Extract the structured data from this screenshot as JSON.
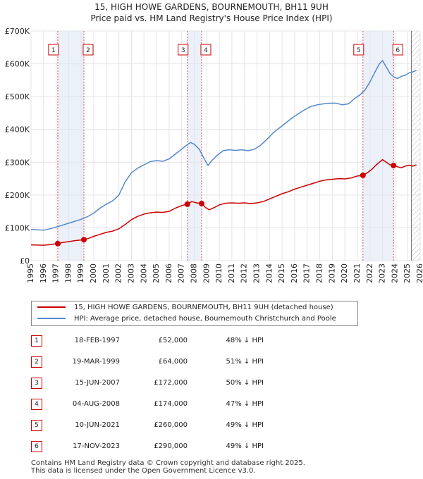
{
  "title_line1": "15, HIGH HOWE GARDENS, BOURNEMOUTH, BH11 9UH",
  "title_line2": "Price paid vs. HM Land Registry's House Price Index (HPI)",
  "chart_data": {
    "type": "line",
    "title": "15, HIGH HOWE GARDENS, BOURNEMOUTH, BH11 9UH — Price paid vs. HM Land Registry's House Price Index (HPI)",
    "xlabel": "",
    "ylabel": "",
    "xlim": [
      1995,
      2026
    ],
    "ylim": [
      0,
      700000
    ],
    "y_ticks": [
      0,
      100000,
      200000,
      300000,
      400000,
      500000,
      600000,
      700000
    ],
    "y_tick_labels": [
      "£0",
      "£100K",
      "£200K",
      "£300K",
      "£400K",
      "£500K",
      "£600K",
      "£700K"
    ],
    "x_ticks": [
      1995,
      1996,
      1997,
      1998,
      1999,
      2000,
      2001,
      2002,
      2003,
      2004,
      2005,
      2006,
      2007,
      2008,
      2009,
      2010,
      2011,
      2012,
      2013,
      2014,
      2015,
      2016,
      2017,
      2018,
      2019,
      2020,
      2021,
      2022,
      2023,
      2024,
      2025,
      2026
    ],
    "grid": true,
    "hatched_after": 2025.3,
    "series": [
      {
        "name": "15, HIGH HOWE GARDENS, BOURNEMOUTH, BH11 9UH (detached house)",
        "color": "#cc0000",
        "x": [
          1995.0,
          1995.5,
          1996.0,
          1996.5,
          1997.13,
          1997.5,
          1998.0,
          1998.5,
          1999.21,
          1999.6,
          2000.0,
          2000.5,
          2001.0,
          2001.5,
          2002.0,
          2002.5,
          2003.0,
          2003.5,
          2004.0,
          2004.5,
          2005.0,
          2005.5,
          2006.0,
          2006.5,
          2007.0,
          2007.45,
          2007.8,
          2008.2,
          2008.59,
          2008.9,
          2009.2,
          2009.6,
          2010.0,
          2010.5,
          2011.0,
          2011.5,
          2012.0,
          2012.5,
          2013.0,
          2013.5,
          2014.0,
          2014.5,
          2015.0,
          2015.5,
          2016.0,
          2016.5,
          2017.0,
          2017.5,
          2018.0,
          2018.5,
          2019.0,
          2019.5,
          2020.0,
          2020.5,
          2021.0,
          2021.44,
          2021.8,
          2022.2,
          2022.5,
          2022.75,
          2023.0,
          2023.3,
          2023.6,
          2023.88,
          2024.2,
          2024.5,
          2024.8,
          2025.1,
          2025.4,
          2025.7
        ],
        "values": [
          48000,
          47500,
          47000,
          49000,
          52000,
          55000,
          58000,
          61000,
          64000,
          68000,
          74000,
          80000,
          86000,
          90000,
          97000,
          110000,
          125000,
          135000,
          142000,
          146000,
          148000,
          147000,
          150000,
          160000,
          168000,
          172000,
          180000,
          176000,
          174000,
          162000,
          155000,
          162000,
          170000,
          175000,
          176000,
          175000,
          176000,
          174000,
          176000,
          180000,
          188000,
          196000,
          204000,
          210000,
          218000,
          224000,
          230000,
          236000,
          242000,
          246000,
          248000,
          250000,
          249000,
          252000,
          258000,
          260000,
          268000,
          280000,
          292000,
          300000,
          308000,
          300000,
          292000,
          290000,
          286000,
          283000,
          288000,
          291000,
          288000,
          292000
        ]
      },
      {
        "name": "HPI: Average price, detached house, Bournemouth Christchurch and Poole",
        "color": "#5588cc",
        "x": [
          1995.0,
          1995.5,
          1996.0,
          1996.5,
          1997.0,
          1997.5,
          1998.0,
          1998.5,
          1999.0,
          1999.5,
          2000.0,
          2000.5,
          2001.0,
          2001.5,
          2002.0,
          2002.5,
          2003.0,
          2003.5,
          2004.0,
          2004.5,
          2005.0,
          2005.5,
          2006.0,
          2006.5,
          2007.0,
          2007.4,
          2007.7,
          2008.0,
          2008.4,
          2008.8,
          2009.1,
          2009.4,
          2009.8,
          2010.3,
          2010.8,
          2011.3,
          2011.8,
          2012.3,
          2012.8,
          2013.3,
          2013.8,
          2014.3,
          2014.8,
          2015.3,
          2015.8,
          2016.3,
          2016.8,
          2017.3,
          2017.8,
          2018.3,
          2018.8,
          2019.3,
          2019.8,
          2020.3,
          2020.8,
          2021.2,
          2021.6,
          2022.0,
          2022.4,
          2022.75,
          2023.0,
          2023.3,
          2023.6,
          2023.9,
          2024.2,
          2024.5,
          2024.8,
          2025.1,
          2025.4,
          2025.7
        ],
        "values": [
          95000,
          94000,
          93000,
          97000,
          102000,
          108000,
          114000,
          120000,
          126000,
          134000,
          145000,
          160000,
          172000,
          182000,
          200000,
          240000,
          268000,
          282000,
          292000,
          302000,
          305000,
          303000,
          310000,
          325000,
          340000,
          352000,
          360000,
          355000,
          340000,
          310000,
          290000,
          305000,
          320000,
          335000,
          338000,
          336000,
          338000,
          335000,
          340000,
          352000,
          370000,
          390000,
          405000,
          420000,
          435000,
          448000,
          460000,
          470000,
          475000,
          478000,
          480000,
          480000,
          475000,
          478000,
          495000,
          505000,
          520000,
          545000,
          575000,
          600000,
          610000,
          590000,
          570000,
          560000,
          555000,
          562000,
          565000,
          572000,
          575000,
          580000
        ]
      }
    ],
    "sales": [
      {
        "label": "1",
        "x": 1997.13,
        "price": 52000
      },
      {
        "label": "2",
        "x": 1999.21,
        "price": 64000
      },
      {
        "label": "3",
        "x": 2007.45,
        "price": 172000
      },
      {
        "label": "4",
        "x": 2008.59,
        "price": 174000
      },
      {
        "label": "5",
        "x": 2021.44,
        "price": 260000
      },
      {
        "label": "6",
        "x": 2023.88,
        "price": 290000
      }
    ],
    "shaded_periods": [
      [
        1997.13,
        1999.21
      ],
      [
        2007.45,
        2008.59
      ],
      [
        2021.44,
        2023.88
      ]
    ]
  },
  "legend": {
    "property": "15, HIGH HOWE GARDENS, BOURNEMOUTH, BH11 9UH (detached house)",
    "hpi": "HPI: Average price, detached house, Bournemouth Christchurch and Poole",
    "property_color": "#cc0000",
    "hpi_color": "#5588cc"
  },
  "transactions": [
    {
      "num": "1",
      "date": "18-FEB-1997",
      "price": "£52,000",
      "hpi": "48% ↓ HPI"
    },
    {
      "num": "2",
      "date": "19-MAR-1999",
      "price": "£64,000",
      "hpi": "51% ↓ HPI"
    },
    {
      "num": "3",
      "date": "15-JUN-2007",
      "price": "£172,000",
      "hpi": "50% ↓ HPI"
    },
    {
      "num": "4",
      "date": "04-AUG-2008",
      "price": "£174,000",
      "hpi": "47% ↓ HPI"
    },
    {
      "num": "5",
      "date": "10-JUN-2021",
      "price": "£260,000",
      "hpi": "49% ↓ HPI"
    },
    {
      "num": "6",
      "date": "17-NOV-2023",
      "price": "£290,000",
      "hpi": "49% ↓ HPI"
    }
  ],
  "footer": {
    "line1": "Contains HM Land Registry data © Crown copyright and database right 2025.",
    "line2": "This data is licensed under the Open Government Licence v3.0."
  }
}
